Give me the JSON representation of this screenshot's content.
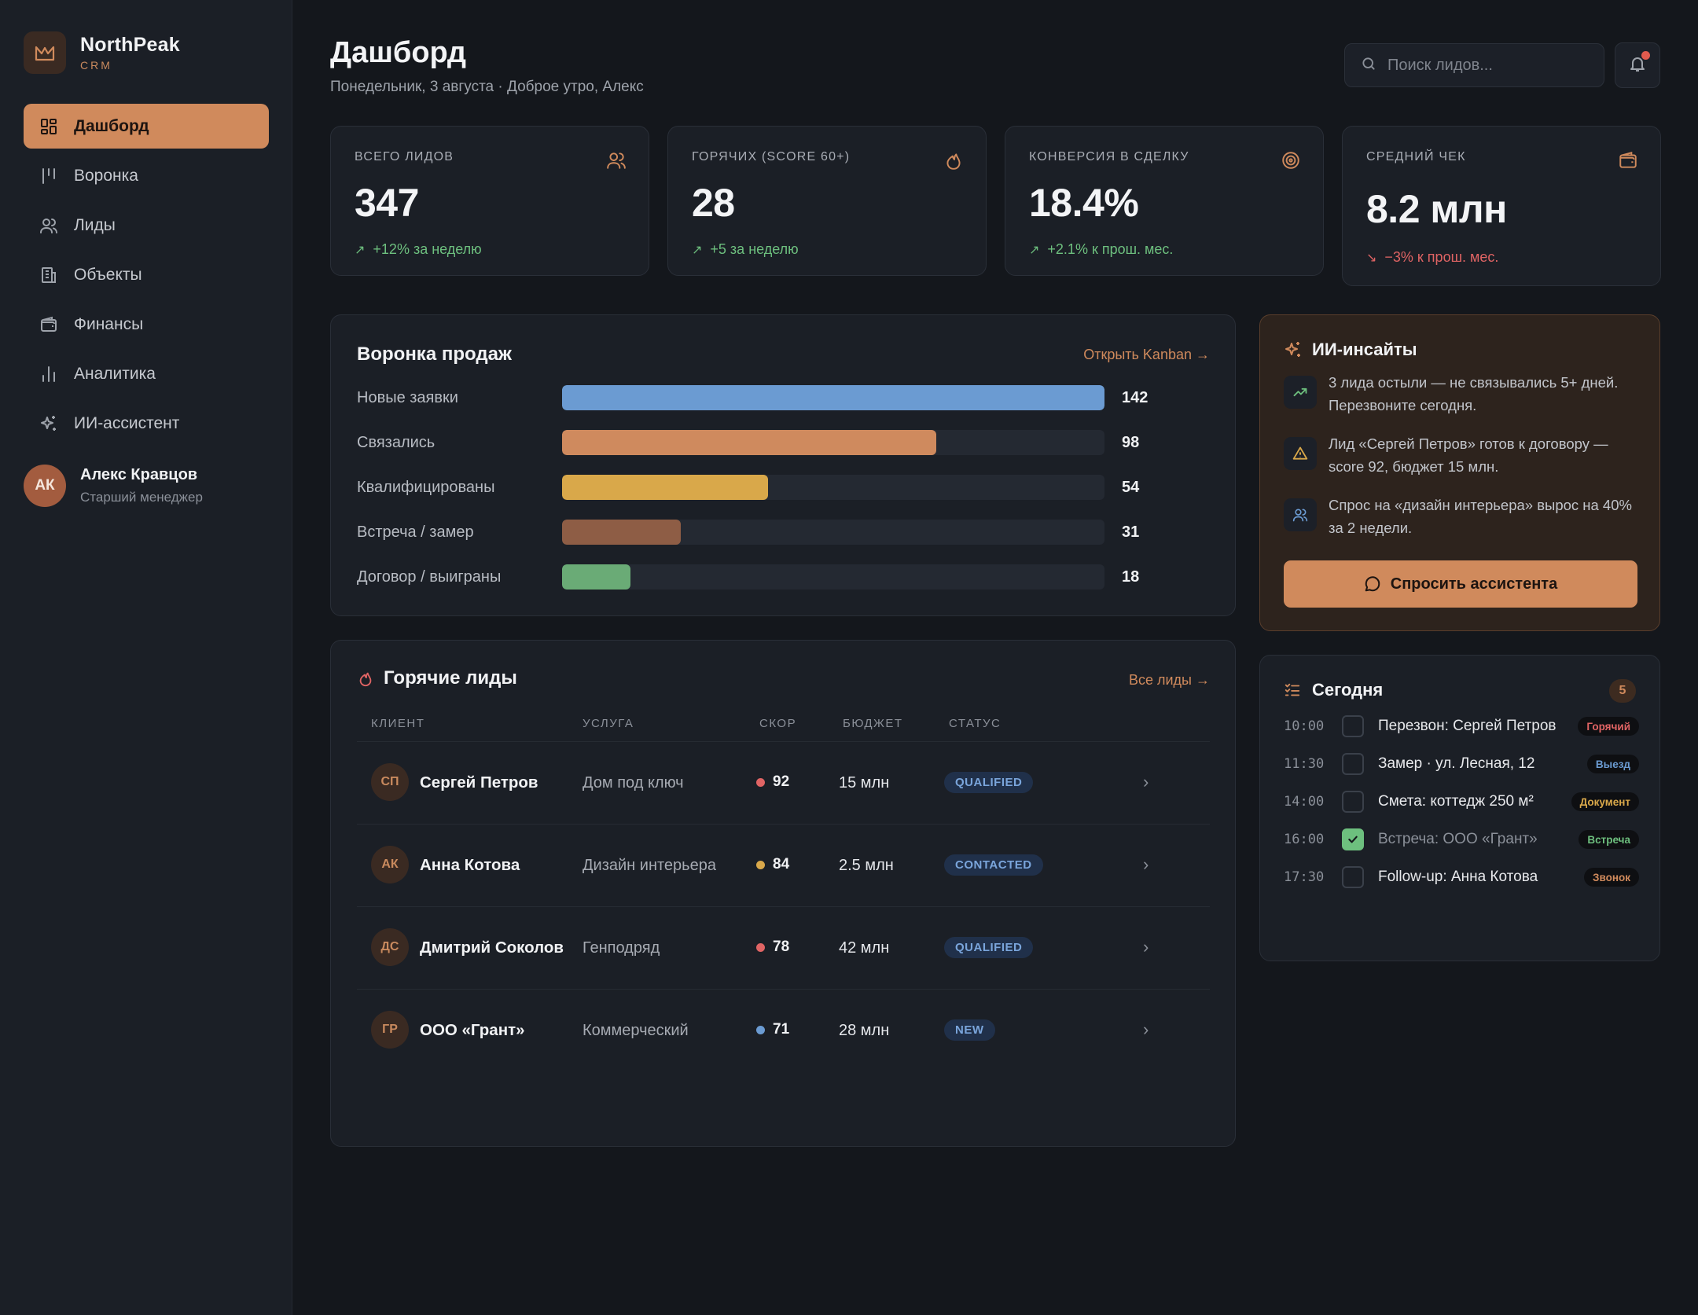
{
  "brand": {
    "name": "NorthPeak",
    "sub": "CRM"
  },
  "sidebar": {
    "items": [
      {
        "label": "Дашборд",
        "icon": "dashboard-icon",
        "active": true
      },
      {
        "label": "Воронка",
        "icon": "funnel-icon"
      },
      {
        "label": "Лиды",
        "icon": "users-icon"
      },
      {
        "label": "Объекты",
        "icon": "building-icon"
      },
      {
        "label": "Финансы",
        "icon": "wallet-icon"
      },
      {
        "label": "Аналитика",
        "icon": "bar-chart-icon"
      },
      {
        "label": "ИИ-ассистент",
        "icon": "sparkles-icon"
      }
    ],
    "user": {
      "initials": "АК",
      "name": "Алекс Кравцов",
      "role": "Старший менеджер"
    }
  },
  "header": {
    "title": "Дашборд",
    "subtitle": "Понедельник, 3 августа · Доброе утро, Алекс",
    "search_placeholder": "Поиск лидов..."
  },
  "kpis": [
    {
      "label": "ВСЕГО ЛИДОВ",
      "value": "347",
      "delta": "+12% за неделю",
      "trend": "up",
      "icon": "users-icon"
    },
    {
      "label": "ГОРЯЧИХ (SCORE 60+)",
      "value": "28",
      "delta": "+5 за неделю",
      "trend": "up",
      "icon": "flame-icon"
    },
    {
      "label": "КОНВЕРСИЯ В СДЕЛКУ",
      "value": "18.4%",
      "delta": "+2.1% к прош. мес.",
      "trend": "up",
      "icon": "target-icon"
    },
    {
      "label": "СРЕДНИЙ ЧЕК",
      "value": "8.2 млн",
      "delta": "−3% к прош. мес.",
      "trend": "down",
      "icon": "wallet-icon"
    }
  ],
  "funnel": {
    "title": "Воронка продаж",
    "link": "Открыть Kanban →",
    "stages": [
      {
        "label": "Новые заявки",
        "value": 142,
        "color": "#6b9bd2"
      },
      {
        "label": "Связались",
        "value": 98,
        "color": "#cf8a5e"
      },
      {
        "label": "Квалифицированы",
        "value": 54,
        "color": "#d9a84a"
      },
      {
        "label": "Встреча / замер",
        "value": 31,
        "color": "#8e5d45"
      },
      {
        "label": "Договор / выиграны",
        "value": 18,
        "color": "#6aab76"
      }
    ]
  },
  "insights": {
    "title": "ИИ-инсайты",
    "items": [
      {
        "text": "3 лида остыли — не связывались 5+ дней. Перезвоните сегодня.",
        "icon": "trend-up-icon"
      },
      {
        "text": "Лид «Сергей Петров» готов к договору — score 92, бюджет 15 млн.",
        "icon": "warning-icon"
      },
      {
        "text": "Спрос на «дизайн интерьера» вырос на 40% за 2 недели.",
        "icon": "users-icon"
      }
    ],
    "button": "Спросить ассистента"
  },
  "hot_leads": {
    "title": "Горячие лиды",
    "link": "Все лиды →",
    "columns": [
      "КЛИЕНТ",
      "УСЛУГА",
      "СКОР",
      "БЮДЖЕТ",
      "СТАТУС"
    ],
    "rows": [
      {
        "initials": "СП",
        "name": "Сергей Петров",
        "service": "Дом под ключ",
        "score": "92",
        "score_color": "#e06464",
        "budget": "15 млн",
        "status": "QUALIFIED"
      },
      {
        "initials": "АК",
        "name": "Анна Котова",
        "service": "Дизайн интерьера",
        "score": "84",
        "score_color": "#d9a84a",
        "budget": "2.5 млн",
        "status": "CONTACTED"
      },
      {
        "initials": "ДС",
        "name": "Дмитрий Соколов",
        "service": "Генподряд",
        "score": "78",
        "score_color": "#e06464",
        "budget": "42 млн",
        "status": "QUALIFIED"
      },
      {
        "initials": "ГР",
        "name": "ООО «Грант»",
        "service": "Коммерческий",
        "score": "71",
        "score_color": "#6b9bd2",
        "budget": "28 млн",
        "status": "NEW"
      }
    ]
  },
  "today": {
    "title": "Сегодня",
    "count": "5",
    "tasks": [
      {
        "time": "10:00",
        "text": "Перезвон: Сергей Петров",
        "tag": "Горячий",
        "tag_color": "#e06464",
        "done": false
      },
      {
        "time": "11:30",
        "text": "Замер · ул. Лесная, 12",
        "tag": "Выезд",
        "tag_color": "#6b9bd2",
        "done": false
      },
      {
        "time": "14:00",
        "text": "Смета: коттедж 250 м²",
        "tag": "Документ",
        "tag_color": "#d9a84a",
        "done": false
      },
      {
        "time": "16:00",
        "text": "Встреча: ООО «Грант»",
        "tag": "Встреча",
        "tag_color": "#6dbf7e",
        "done": true
      },
      {
        "time": "17:30",
        "text": "Follow-up: Анна Котова",
        "tag": "Звонок",
        "tag_color": "#d08a5c",
        "done": false
      }
    ]
  }
}
